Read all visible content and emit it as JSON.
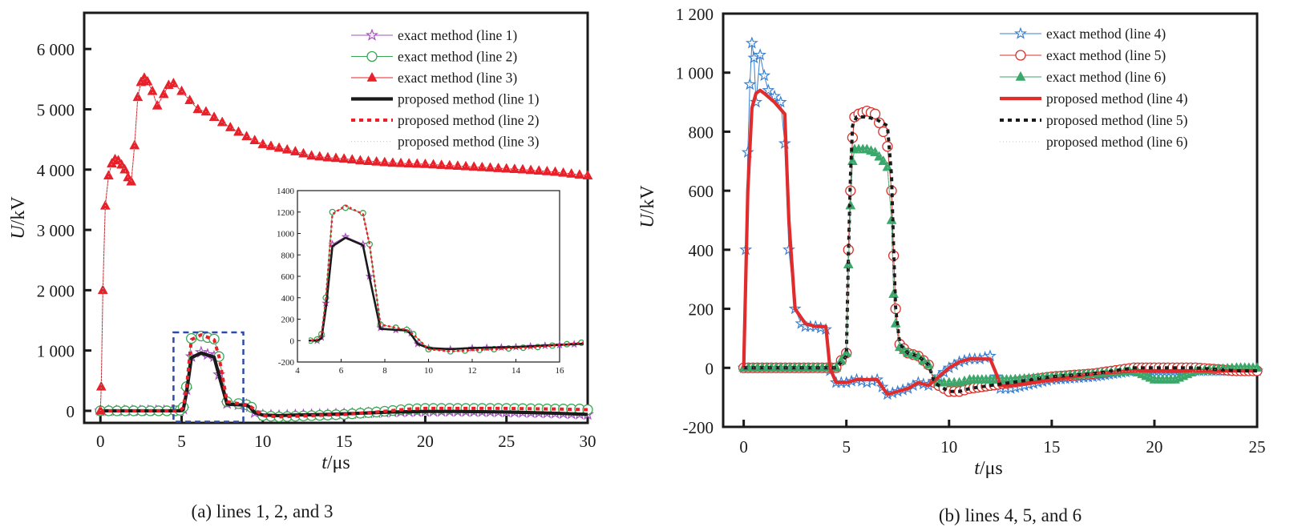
{
  "chart_data": [
    {
      "type": "line",
      "caption": "(a)  lines 1, 2, and 3",
      "xlabel_var": "t",
      "xlabel_unit": "/μs",
      "ylabel_var": "U",
      "ylabel_unit": "/kV",
      "xlim": [
        -1,
        30
      ],
      "ylim": [
        -200,
        6600
      ],
      "xticks": [
        0,
        5,
        10,
        15,
        20,
        25,
        30
      ],
      "xtick_labels": [
        "0",
        "5",
        "10",
        "15",
        "20",
        "25",
        "30"
      ],
      "yticks": [
        0,
        1000,
        2000,
        3000,
        4000,
        5000,
        6000
      ],
      "ytick_labels": [
        "0",
        "1 000",
        "2 000",
        "3 000",
        "4 000",
        "5 000",
        "6 000"
      ],
      "legend_position": "top-right",
      "series": [
        {
          "name": "exact method (line 1)",
          "color": "#a64dbf",
          "marker": "star",
          "style": "thin",
          "x": [
            0,
            4.9,
            5.1,
            5.3,
            5.6,
            6.2,
            7,
            7.3,
            7.8,
            8.5,
            9,
            9.2,
            9.5,
            10,
            11,
            12,
            14,
            16,
            18,
            20,
            22,
            25,
            28,
            30
          ],
          "y": [
            0,
            0,
            30,
            350,
            900,
            970,
            900,
            600,
            120,
            100,
            100,
            70,
            -30,
            -70,
            -80,
            -70,
            -60,
            -40,
            -20,
            -10,
            -10,
            -20,
            -40,
            -60
          ]
        },
        {
          "name": "exact method (line 2)",
          "color": "#3aa655",
          "marker": "circle",
          "style": "thin",
          "x": [
            0,
            4.6,
            4.9,
            5.1,
            5.3,
            5.6,
            6.2,
            7,
            7.3,
            7.8,
            8.5,
            9,
            9.3,
            10,
            11,
            13,
            15,
            17,
            19,
            20,
            22,
            25,
            28,
            29.5,
            30
          ],
          "y": [
            0,
            0,
            10,
            60,
            400,
            1200,
            1240,
            1190,
            900,
            150,
            120,
            100,
            60,
            -80,
            -100,
            -80,
            -60,
            -20,
            30,
            40,
            40,
            40,
            30,
            30,
            20
          ]
        },
        {
          "name": "exact method (line 3)",
          "color": "#e8202a",
          "marker": "triangle",
          "style": "thin",
          "x": [
            0,
            0.05,
            0.15,
            0.3,
            0.5,
            0.7,
            0.9,
            1.1,
            1.3,
            1.5,
            1.7,
            1.9,
            2.1,
            2.3,
            2.5,
            2.7,
            2.9,
            3.2,
            3.5,
            3.9,
            4.2,
            4.5,
            5,
            5.5,
            6,
            6.5,
            7,
            8,
            9,
            10,
            11,
            12,
            13,
            14,
            15,
            16,
            17,
            18,
            19,
            20,
            22,
            24,
            26,
            28,
            30
          ],
          "y": [
            0,
            400,
            2000,
            3400,
            3900,
            4100,
            4170,
            4150,
            4080,
            4000,
            3870,
            3800,
            4400,
            5200,
            5450,
            5520,
            5460,
            5300,
            5060,
            5250,
            5400,
            5430,
            5300,
            5150,
            5000,
            4960,
            4870,
            4700,
            4550,
            4420,
            4360,
            4300,
            4230,
            4200,
            4180,
            4150,
            4130,
            4110,
            4100,
            4090,
            4060,
            4030,
            4000,
            3960,
            3900
          ]
        },
        {
          "name": "proposed method (line 1)",
          "color": "#1a1a1a",
          "marker": "none",
          "style": "thick",
          "x": [
            0,
            4.9,
            5.1,
            5.3,
            5.6,
            6.2,
            7,
            7.3,
            7.8,
            8.5,
            9,
            9.2,
            9.5,
            10,
            11,
            12,
            14,
            16,
            18,
            20,
            22,
            25,
            28,
            30
          ],
          "y": [
            0,
            0,
            20,
            300,
            880,
            960,
            890,
            590,
            110,
            100,
            95,
            60,
            -30,
            -70,
            -80,
            -70,
            -60,
            -40,
            -20,
            -10,
            -10,
            -20,
            -40,
            -60
          ]
        },
        {
          "name": "proposed method (line 2)",
          "color": "#e8202a",
          "marker": "none",
          "style": "dashed",
          "x": [
            0,
            4.6,
            4.9,
            5.1,
            5.3,
            5.6,
            6.2,
            7,
            7.3,
            7.8,
            8.5,
            9,
            9.3,
            10,
            11,
            13,
            15,
            17,
            19,
            20,
            22,
            25,
            28,
            30
          ],
          "y": [
            0,
            0,
            10,
            50,
            380,
            1180,
            1260,
            1180,
            900,
            150,
            120,
            100,
            60,
            -80,
            -100,
            -80,
            -60,
            -20,
            30,
            40,
            40,
            40,
            30,
            20
          ]
        },
        {
          "name": "proposed method (line 3)",
          "color": "#c8c8c8",
          "marker": "none",
          "style": "dotted",
          "x": [
            0,
            0.05,
            0.15,
            0.3,
            0.5,
            0.7,
            0.9,
            1.1,
            1.3,
            1.5,
            1.7,
            1.9,
            2.1,
            2.3,
            2.5,
            2.7,
            2.9,
            3.2,
            3.5,
            3.9,
            4.2,
            4.5,
            5,
            5.5,
            6,
            6.5,
            7,
            8,
            9,
            10,
            11,
            12,
            13,
            14,
            15,
            16,
            17,
            18,
            19,
            20,
            22,
            24,
            26,
            28,
            30
          ],
          "y": [
            0,
            400,
            2000,
            3400,
            3900,
            4100,
            4170,
            4150,
            4080,
            4000,
            3870,
            3800,
            4400,
            5200,
            5450,
            5520,
            5460,
            5300,
            5060,
            5250,
            5400,
            5430,
            5300,
            5150,
            5000,
            4960,
            4870,
            4700,
            4550,
            4420,
            4360,
            4300,
            4230,
            4200,
            4180,
            4150,
            4130,
            4110,
            4100,
            4090,
            4060,
            4030,
            4000,
            3960,
            3900
          ]
        }
      ],
      "inset": {
        "xlim": [
          4,
          16
        ],
        "ylim": [
          -200,
          1400
        ],
        "xticks": [
          4,
          6,
          8,
          10,
          12,
          14,
          16
        ],
        "xtick_labels": [
          "4",
          "6",
          "8",
          "10",
          "12",
          "14",
          "16"
        ],
        "yticks": [
          -200,
          0,
          200,
          400,
          600,
          800,
          1000,
          1200,
          1400
        ],
        "ytick_labels": [
          "-200",
          "0",
          "200",
          "400",
          "600",
          "800",
          "1000",
          "1200",
          "1400"
        ],
        "zoom_region_x": [
          4.5,
          8.8
        ],
        "zoom_region_y": [
          -180,
          1300
        ]
      }
    },
    {
      "type": "line",
      "caption": "(b) lines 4, 5, and 6",
      "xlabel_var": "t",
      "xlabel_unit": "/μs",
      "ylabel_var": "U",
      "ylabel_unit": "/kV",
      "xlim": [
        -1,
        25
      ],
      "ylim": [
        -200,
        1200
      ],
      "xticks": [
        0,
        5,
        10,
        15,
        20,
        25
      ],
      "xtick_labels": [
        "0",
        "5",
        "10",
        "15",
        "20",
        "25"
      ],
      "yticks": [
        -200,
        0,
        200,
        400,
        600,
        800,
        1000,
        1200
      ],
      "ytick_labels": [
        "-200",
        "0",
        "200",
        "400",
        "600",
        "800",
        "1 000",
        "1 200"
      ],
      "legend_position": "top-right",
      "series": [
        {
          "name": "exact method (line 4)",
          "color": "#3a7fd0",
          "marker": "star",
          "style": "thin",
          "x": [
            0,
            0.1,
            0.2,
            0.3,
            0.4,
            0.5,
            0.6,
            0.8,
            1,
            1.2,
            1.5,
            1.8,
            2,
            2.2,
            2.5,
            2.8,
            3,
            3.5,
            4,
            4.2,
            4.5,
            5,
            5.5,
            6,
            6.5,
            7,
            7.5,
            8,
            8.5,
            9,
            9.5,
            10,
            10.5,
            11,
            11.5,
            12,
            12.3,
            12.5,
            13,
            15,
            17,
            18,
            19,
            20,
            21,
            22,
            23,
            24,
            25
          ],
          "y": [
            0,
            400,
            730,
            960,
            1100,
            1050,
            900,
            1060,
            990,
            940,
            920,
            900,
            760,
            400,
            200,
            150,
            140,
            140,
            130,
            -10,
            -50,
            -50,
            -40,
            -50,
            -40,
            -90,
            -80,
            -70,
            -50,
            -60,
            -30,
            0,
            20,
            30,
            30,
            40,
            -30,
            -70,
            -70,
            -40,
            -30,
            -20,
            -10,
            -10,
            -10,
            -10,
            -10,
            -10,
            -10
          ]
        },
        {
          "name": "exact method (line 5)",
          "color": "#d9312b",
          "marker": "circle",
          "style": "thin",
          "x": [
            0,
            4.5,
            5,
            5.1,
            5.2,
            5.3,
            5.4,
            5.6,
            6,
            6.4,
            6.8,
            7,
            7.2,
            7.3,
            7.4,
            7.6,
            8,
            8.5,
            9,
            9.3,
            9.5,
            10,
            10.5,
            11,
            12,
            13,
            15,
            17,
            19,
            20,
            22,
            24,
            25
          ],
          "y": [
            0,
            0,
            50,
            400,
            600,
            780,
            850,
            860,
            870,
            860,
            800,
            750,
            600,
            380,
            200,
            80,
            50,
            40,
            10,
            -50,
            -60,
            -80,
            -80,
            -70,
            -60,
            -50,
            -30,
            -20,
            0,
            0,
            0,
            -10,
            -10
          ]
        },
        {
          "name": "exact method (line 6)",
          "color": "#3aa86a",
          "marker": "triangle",
          "style": "thin",
          "x": [
            0,
            4.5,
            5,
            5.1,
            5.2,
            5.3,
            5.4,
            5.6,
            6,
            6.4,
            6.8,
            7,
            7.2,
            7.3,
            7.4,
            7.6,
            8,
            8.5,
            9,
            9.3,
            9.5,
            10,
            10.5,
            11,
            12,
            13,
            15,
            17,
            19,
            20,
            21,
            22,
            24,
            25
          ],
          "y": [
            0,
            0,
            50,
            350,
            550,
            700,
            740,
            740,
            740,
            730,
            700,
            680,
            500,
            250,
            150,
            70,
            50,
            40,
            10,
            -40,
            -50,
            -50,
            -50,
            -40,
            -40,
            -40,
            -30,
            -20,
            -10,
            -40,
            -40,
            -10,
            0,
            0
          ]
        },
        {
          "name": "proposed method (line 4)",
          "color": "#e02c2c",
          "marker": "none",
          "style": "thick",
          "x": [
            0,
            0.1,
            0.2,
            0.4,
            0.6,
            0.8,
            1,
            1.5,
            2,
            2.2,
            2.5,
            3,
            3.5,
            4,
            4.2,
            4.5,
            5,
            5.5,
            6,
            6.5,
            7,
            7.5,
            8,
            8.5,
            9,
            9.5,
            10,
            10.5,
            11,
            12,
            12.3,
            12.5,
            13,
            15,
            17,
            19,
            21,
            23,
            25
          ],
          "y": [
            0,
            300,
            600,
            880,
            930,
            940,
            930,
            900,
            860,
            500,
            200,
            150,
            140,
            140,
            0,
            -50,
            -50,
            -40,
            -40,
            -40,
            -90,
            -80,
            -70,
            -50,
            -60,
            -30,
            0,
            20,
            30,
            30,
            -20,
            -60,
            -60,
            -40,
            -20,
            -10,
            -10,
            -10,
            -10
          ]
        },
        {
          "name": "proposed method (line 5)",
          "color": "#1a1a1a",
          "marker": "none",
          "style": "dashed",
          "x": [
            0,
            4.5,
            5,
            5.1,
            5.2,
            5.3,
            5.5,
            6,
            6.5,
            7,
            7.2,
            7.3,
            7.4,
            7.6,
            8,
            8.5,
            9,
            9.3,
            9.5,
            10,
            10.5,
            11,
            12,
            13,
            15,
            17,
            19,
            20,
            22,
            24,
            25
          ],
          "y": [
            0,
            0,
            40,
            380,
            650,
            820,
            850,
            850,
            840,
            820,
            650,
            400,
            200,
            80,
            50,
            40,
            10,
            -50,
            -60,
            -80,
            -80,
            -70,
            -60,
            -50,
            -30,
            -20,
            0,
            0,
            0,
            -10,
            -10
          ]
        },
        {
          "name": "proposed method (line 6)",
          "color": "#c8c8c8",
          "marker": "none",
          "style": "dotted",
          "x": [
            0,
            4.5,
            5,
            5.1,
            5.2,
            5.3,
            5.5,
            6,
            6.5,
            7,
            7.2,
            7.3,
            7.4,
            7.6,
            8,
            8.5,
            9,
            9.3,
            9.5,
            10,
            11,
            12,
            13,
            15,
            17,
            19,
            20,
            21,
            22,
            24,
            25
          ],
          "y": [
            0,
            0,
            40,
            330,
            540,
            690,
            730,
            740,
            730,
            690,
            500,
            250,
            150,
            70,
            50,
            40,
            10,
            -40,
            -50,
            -50,
            -40,
            -40,
            -40,
            -30,
            -20,
            -10,
            -40,
            -40,
            -10,
            0,
            0
          ]
        }
      ]
    }
  ]
}
